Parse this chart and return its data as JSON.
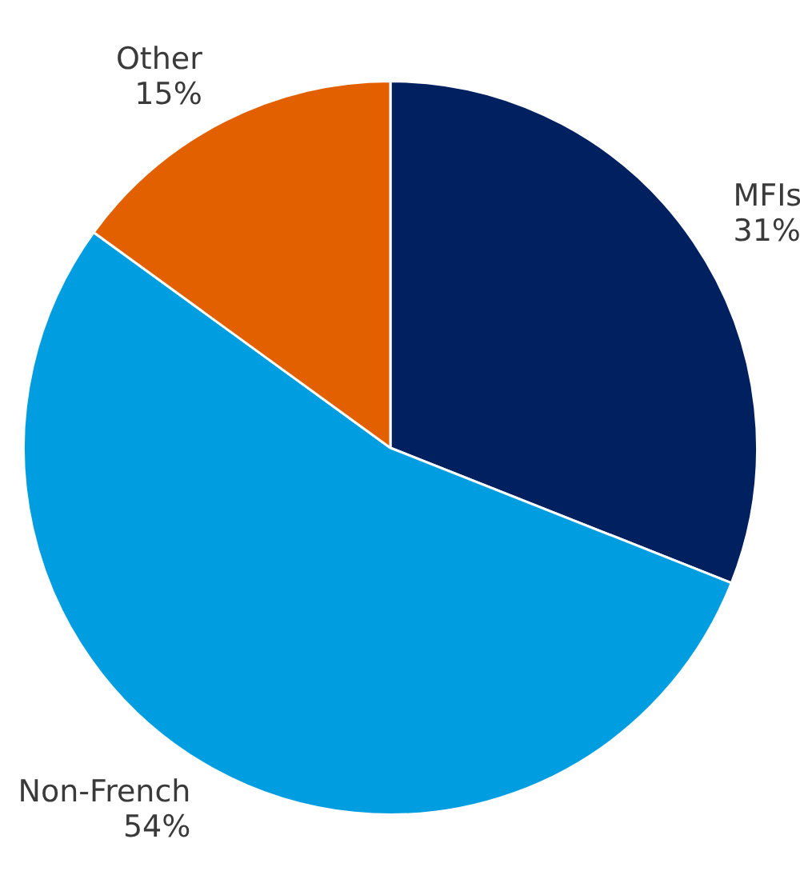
{
  "chart_data": {
    "type": "pie",
    "categories": [
      "MFIs",
      "Non-French",
      "Other"
    ],
    "values": [
      31,
      54,
      15
    ],
    "colors": [
      "#00205f",
      "#009ee0",
      "#e36000"
    ],
    "value_labels": [
      "31%",
      "54%",
      "15%"
    ],
    "legend": false
  }
}
